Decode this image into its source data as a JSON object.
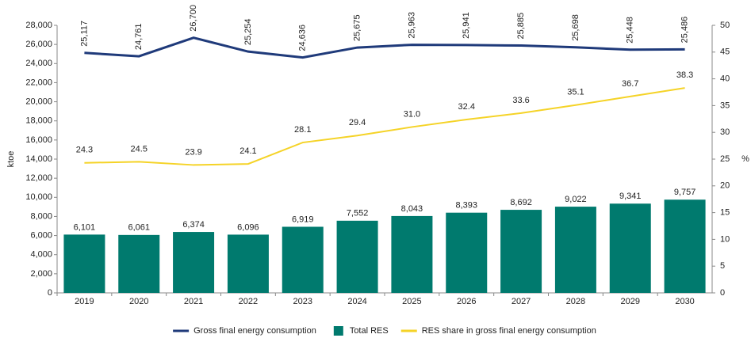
{
  "chart_data": {
    "type": "combo",
    "categories": [
      "2019",
      "2020",
      "2021",
      "2022",
      "2023",
      "2024",
      "2025",
      "2026",
      "2027",
      "2028",
      "2029",
      "2030"
    ],
    "series": [
      {
        "name": "Gross final energy consumption",
        "type": "line",
        "color": "#1f3a7a",
        "axis": "y",
        "values": [
          25117,
          24761,
          26700,
          25254,
          24636,
          25675,
          25963,
          25941,
          25885,
          25698,
          25448,
          25486
        ],
        "value_labels": [
          "25,117",
          "24,761",
          "26,700",
          "25,254",
          "24,636",
          "25,675",
          "25,963",
          "25,941",
          "25,885",
          "25,698",
          "25,448",
          "25,486"
        ]
      },
      {
        "name": "Total RES",
        "type": "bar",
        "color": "#007a6e",
        "axis": "y",
        "values": [
          6101,
          6061,
          6374,
          6096,
          6919,
          7552,
          8043,
          8393,
          8692,
          9022,
          9341,
          9757
        ],
        "value_labels": [
          "6,101",
          "6,061",
          "6,374",
          "6,096",
          "6,919",
          "7,552",
          "8,043",
          "8,393",
          "8,692",
          "9,022",
          "9,341",
          "9,757"
        ]
      },
      {
        "name": "RES share in gross final energy consumption",
        "type": "line",
        "color": "#f5d327",
        "axis": "y2",
        "values": [
          24.3,
          24.5,
          23.9,
          24.1,
          28.1,
          29.4,
          31.0,
          32.4,
          33.6,
          35.1,
          36.7,
          38.3
        ],
        "value_labels": [
          "24.3",
          "24.5",
          "23.9",
          "24.1",
          "28.1",
          "29.4",
          "31.0",
          "32.4",
          "33.6",
          "35.1",
          "36.7",
          "38.3"
        ]
      }
    ],
    "ylabel": "ktoe",
    "y2label": "%",
    "ylim": [
      0,
      28000
    ],
    "yticks": [
      0,
      {
        "value": 2000,
        "label": "2,000"
      },
      {
        "value": 4000,
        "label": "4,000"
      },
      {
        "value": 6000,
        "label": "6,000"
      },
      {
        "value": 8000,
        "label": "8,000"
      },
      {
        "value": 10000,
        "label": "10,000"
      },
      {
        "value": 12000,
        "label": "12,000"
      },
      {
        "value": 14000,
        "label": "14,000"
      },
      {
        "value": 16000,
        "label": "16,000"
      },
      {
        "value": 18000,
        "label": "18,000"
      },
      {
        "value": 20000,
        "label": "20,000"
      },
      {
        "value": 22000,
        "label": "22,000"
      },
      {
        "value": 24000,
        "label": "24,000"
      },
      {
        "value": 26000,
        "label": "26,000"
      },
      {
        "value": 28000,
        "label": "28,000"
      }
    ],
    "y2lim": [
      0,
      50
    ],
    "y2ticks": [
      0,
      5,
      10,
      15,
      20,
      25,
      30,
      35,
      40,
      45,
      50
    ],
    "grid": false,
    "legend": "bottom"
  }
}
